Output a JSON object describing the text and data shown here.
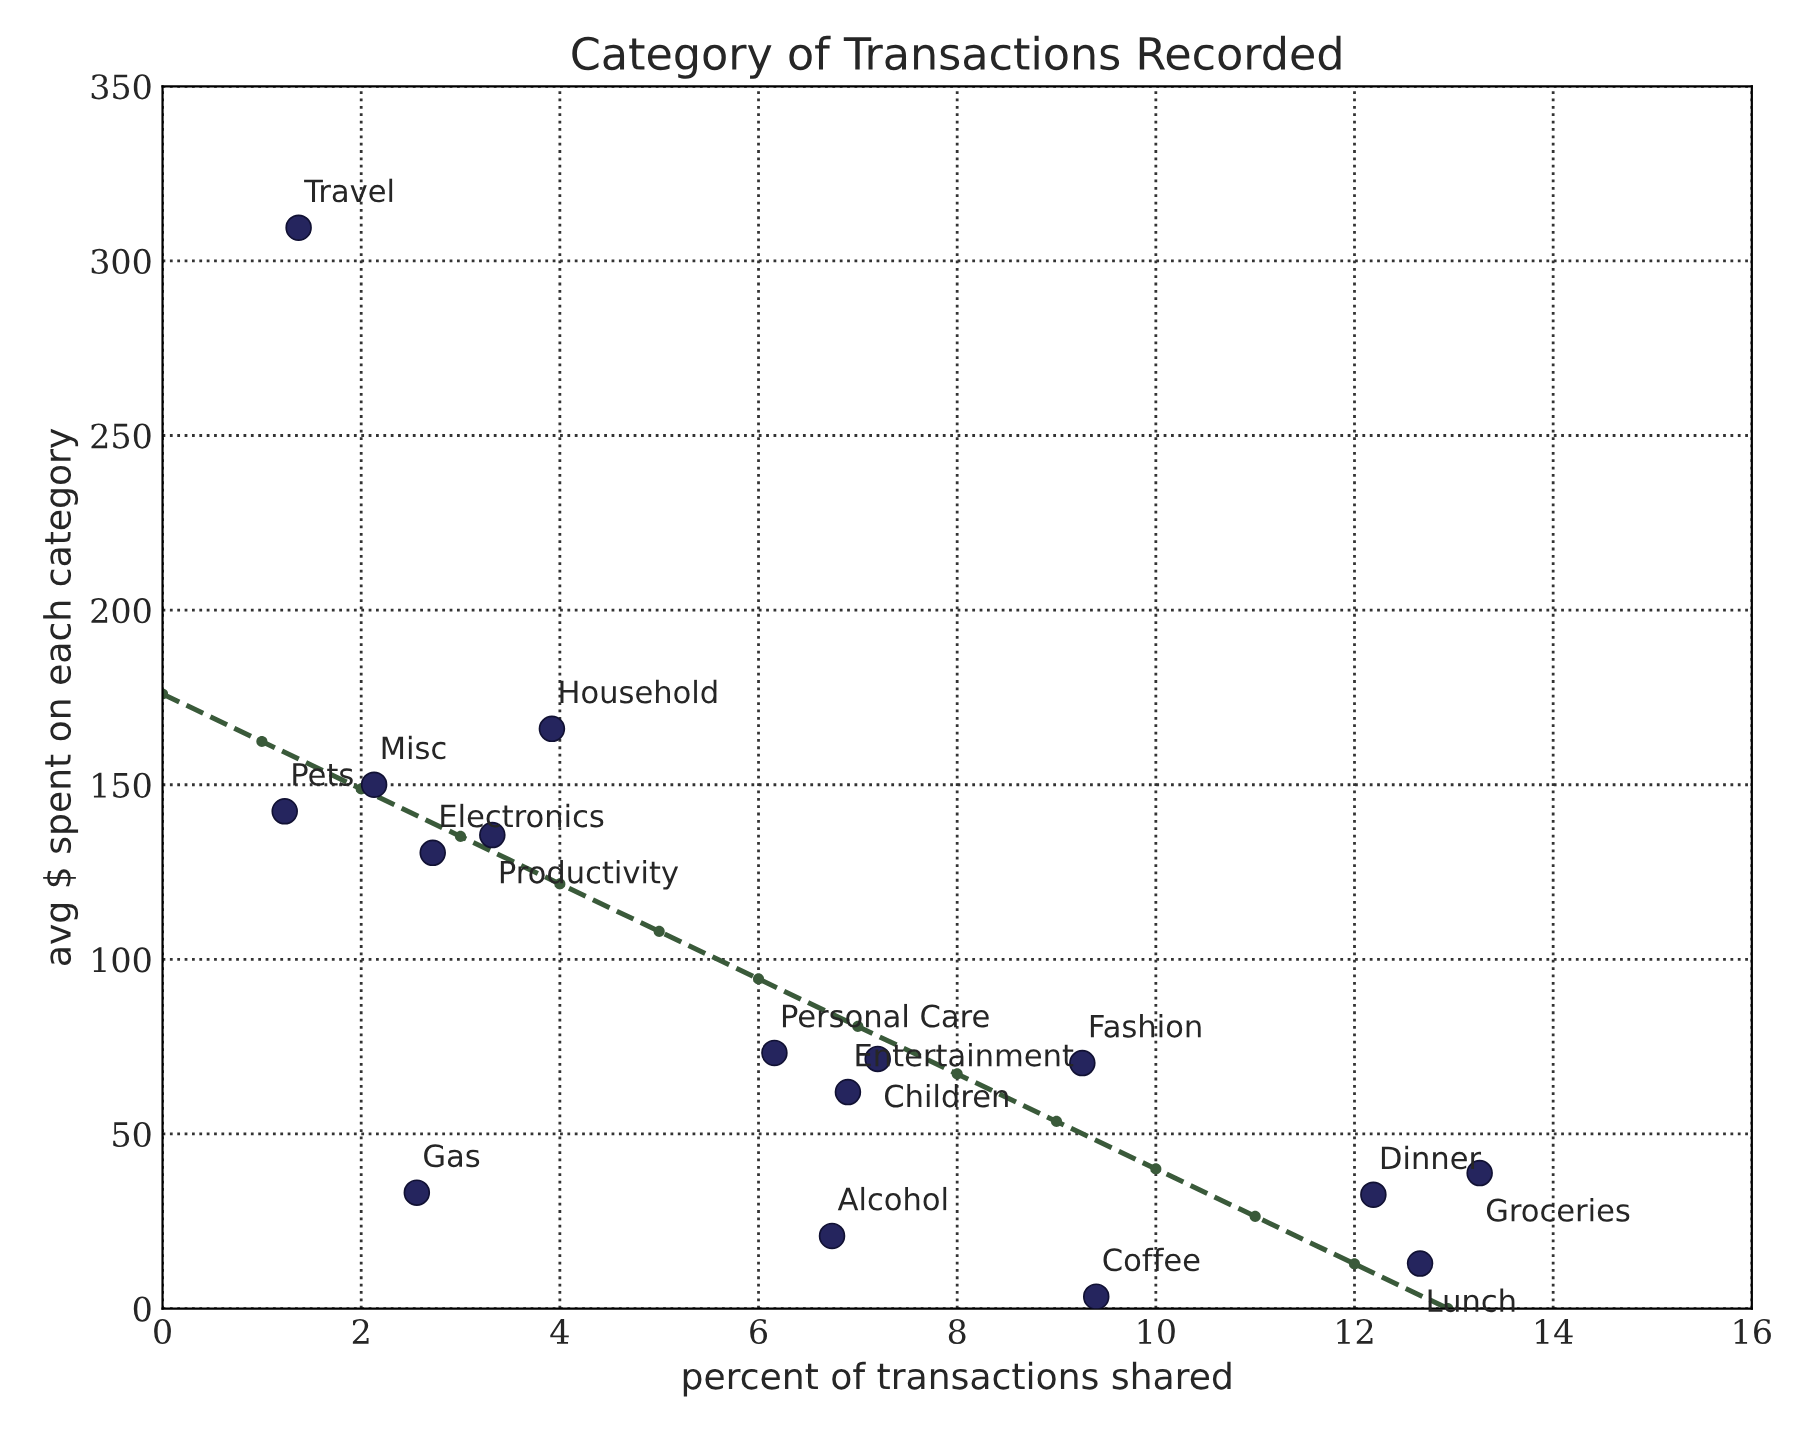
{
  "chart_data": {
    "type": "scatter",
    "title": "Category of Transactions Recorded",
    "xlabel": "percent of transactions shared",
    "ylabel": "avg $ spent on each category",
    "xlim": [
      0,
      16
    ],
    "ylim": [
      0,
      350
    ],
    "xticks": [
      0,
      2,
      4,
      6,
      8,
      10,
      12,
      14,
      16
    ],
    "yticks": [
      0,
      50,
      100,
      150,
      200,
      250,
      300,
      350
    ],
    "grid": true,
    "marker": "circle",
    "series": [
      {
        "color": "#25255e",
        "x": [
          1.37,
          1.23,
          2.13,
          2.72,
          3.32,
          3.92,
          2.56,
          6.16,
          7.2,
          6.9,
          6.74,
          9.26,
          9.4,
          12.19,
          13.26,
          12.66
        ],
        "values": [
          309.5,
          142.4,
          150,
          130.5,
          135.6,
          166,
          33.2,
          73.2,
          71.5,
          62,
          20.8,
          70.3,
          3.4,
          32.6,
          38.8,
          12.9
        ]
      },
      {
        "type": "line",
        "color": "#3a5a3a",
        "line_style": "dashed",
        "marker": "circle",
        "x": [
          0,
          1,
          2,
          3,
          4,
          5,
          6,
          7,
          8,
          9,
          10,
          11,
          12,
          12.94
        ],
        "values": [
          176,
          162.4,
          148.8,
          135.2,
          121.6,
          108,
          94.4,
          80.8,
          67.2,
          53.6,
          40,
          26.4,
          12.8,
          0
        ]
      }
    ],
    "annotations": [
      {
        "text": "Travel",
        "x": 1.37,
        "y": 309.5
      },
      {
        "text": "Pets",
        "x": 1.23,
        "y": 142.4
      },
      {
        "text": "Misc",
        "x": 2.13,
        "y": 150
      },
      {
        "text": "Electronics",
        "x": 2.72,
        "y": 130.5
      },
      {
        "text": "Productivity",
        "x": 3.32,
        "y": 135.6
      },
      {
        "text": "Household",
        "x": 3.92,
        "y": 166
      },
      {
        "text": "Gas",
        "x": 2.56,
        "y": 33.2
      },
      {
        "text": "Personal Care",
        "x": 6.16,
        "y": 73.2
      },
      {
        "text": "Children",
        "x": 7.2,
        "y": 71.5
      },
      {
        "text": "Entertainment",
        "x": 6.9,
        "y": 62
      },
      {
        "text": "Alcohol",
        "x": 6.74,
        "y": 20.8
      },
      {
        "text": "Fashion",
        "x": 9.26,
        "y": 70.3
      },
      {
        "text": "Coffee",
        "x": 9.4,
        "y": 3.4
      },
      {
        "text": "Dinner",
        "x": 12.19,
        "y": 32.6
      },
      {
        "text": "Groceries",
        "x": 13.26,
        "y": 38.8
      },
      {
        "text": "Lunch",
        "x": 12.66,
        "y": 12.9
      }
    ]
  }
}
